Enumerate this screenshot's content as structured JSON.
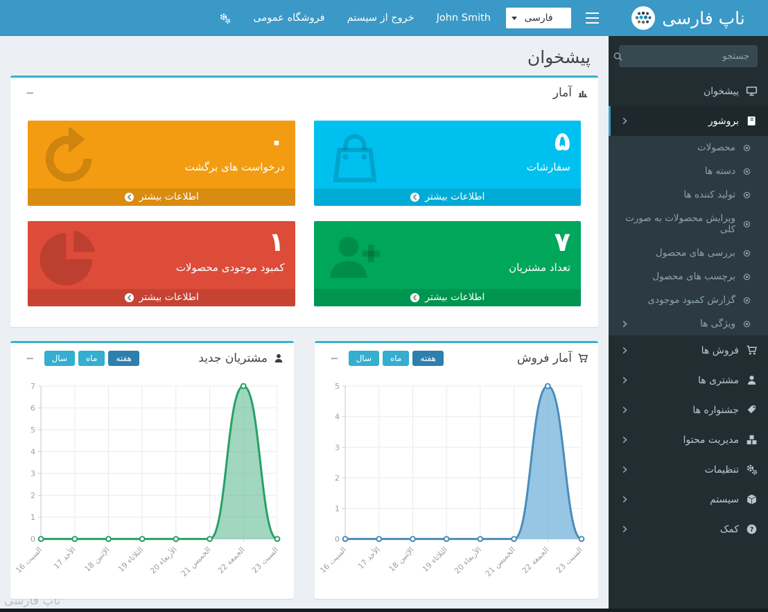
{
  "brand": {
    "name": "ناپ فارسی",
    "logo_icon": "logo-dots"
  },
  "topbar": {
    "menu_icon": "bars",
    "language_selected": "فارسی",
    "user_name": "John Smith",
    "logout_link": "خروج از سیستم",
    "store_link": "فروشگاه عمومی",
    "settings_icon": "gears"
  },
  "sidebar": {
    "search_placeholder": "جستجو",
    "search_icon": "search",
    "items": [
      {
        "label": "پیشخوان",
        "icon": "desktop",
        "active": false,
        "has_children": false,
        "children": []
      },
      {
        "label": "بروشور",
        "icon": "book",
        "active": true,
        "has_children": true,
        "children": [
          {
            "label": "محصولات",
            "has_children": false
          },
          {
            "label": "دسته ها",
            "has_children": false
          },
          {
            "label": "تولید کننده ها",
            "has_children": false
          },
          {
            "label": "ویرایش محصولات به صورت کلی",
            "has_children": false
          },
          {
            "label": "بررسی های محصول",
            "has_children": false
          },
          {
            "label": "برچسب های محصول",
            "has_children": false
          },
          {
            "label": "گزارش کمبود موجودی",
            "has_children": false
          },
          {
            "label": "ویژگی ها",
            "has_children": true
          }
        ]
      },
      {
        "label": "فروش ها",
        "icon": "cart",
        "active": false,
        "has_children": true,
        "children": []
      },
      {
        "label": "مشتری ها",
        "icon": "user",
        "active": false,
        "has_children": true,
        "children": []
      },
      {
        "label": "جشنواره ها",
        "icon": "tags",
        "active": false,
        "has_children": true,
        "children": []
      },
      {
        "label": "مدیریت محتوا",
        "icon": "cubes",
        "active": false,
        "has_children": true,
        "children": []
      },
      {
        "label": "تنظیمات",
        "icon": "gears",
        "active": false,
        "has_children": true,
        "children": []
      },
      {
        "label": "سیستم",
        "icon": "cube",
        "active": false,
        "has_children": true,
        "children": []
      },
      {
        "label": "کمک",
        "icon": "question",
        "active": false,
        "has_children": true,
        "children": []
      }
    ]
  },
  "page": {
    "title": "پیشخوان"
  },
  "ui": {
    "collapse_glyph": "−"
  },
  "stats": {
    "panel_title": "آمار",
    "panel_icon": "bar-chart",
    "more_info_label": "اطلاعات بیشتر",
    "more_info_icon": "arrow-circle-left",
    "boxes": [
      {
        "value": "۵",
        "label": "سفارشات",
        "color": "#00c0ef",
        "icon": "bag"
      },
      {
        "value": "۰",
        "label": "درخواست های برگشت",
        "color": "#f39c12",
        "icon": "refresh"
      },
      {
        "value": "۷",
        "label": "تعداد مشتریان",
        "color": "#00a65a",
        "icon": "user-plus"
      },
      {
        "value": "۱",
        "label": "کمبود موجودی محصولات",
        "color": "#dd4b39",
        "icon": "pie"
      }
    ]
  },
  "charts": [
    {
      "title": "آمار فروش",
      "icon": "cart",
      "buttons": [
        "هفته",
        "ماه",
        "سال"
      ],
      "active_button": "هفته"
    },
    {
      "title": "مشتریان جدید",
      "icon": "user",
      "buttons": [
        "هفته",
        "ماه",
        "سال"
      ],
      "active_button": "هفته"
    }
  ],
  "chart_data": [
    {
      "type": "area",
      "title": "آمار فروش",
      "categories": [
        "السبت 16",
        "الأحد 17",
        "الإثنين 18",
        "الثلاثاء 19",
        "الأربعاء 20",
        "الخميس 21",
        "الجمعة 22",
        "السبت 23"
      ],
      "values": [
        0,
        0,
        0,
        0,
        0,
        0,
        5,
        0
      ],
      "ylim": [
        0,
        5
      ],
      "ytick_step": 1,
      "grid": true,
      "legend": false,
      "xlabel_rotation": -45,
      "line_color": "#4a8cb8",
      "fill_color": "#7cb8dd",
      "fill_opacity": 0.8
    },
    {
      "type": "area",
      "title": "مشتریان جدید",
      "categories": [
        "السبت 16",
        "الأحد 17",
        "الإثنين 18",
        "الثلاثاء 19",
        "الأربعاء 20",
        "الخميس 21",
        "الجمعة 22",
        "السبت 23"
      ],
      "values": [
        0,
        0,
        0,
        0,
        0,
        0,
        7,
        0
      ],
      "ylim": [
        0,
        7
      ],
      "ytick_step": 1,
      "grid": true,
      "legend": false,
      "xlabel_rotation": -45,
      "line_color": "#27a066",
      "fill_color": "#52b788",
      "fill_opacity": 0.55
    }
  ],
  "footer": {
    "watermark": "ناپ فارسی"
  },
  "theme": {
    "header_blue": "#3a99c6",
    "sidebar_bg": "#222d32",
    "submenu_bg": "#2c3b41",
    "active_item_bg": "#1e282c",
    "active_accent": "#3c9dc8",
    "panel_accent": "#37b2c9",
    "button_light": "#35aed0",
    "button_active": "#2d7fad",
    "content_bg": "#ecf0f5"
  }
}
